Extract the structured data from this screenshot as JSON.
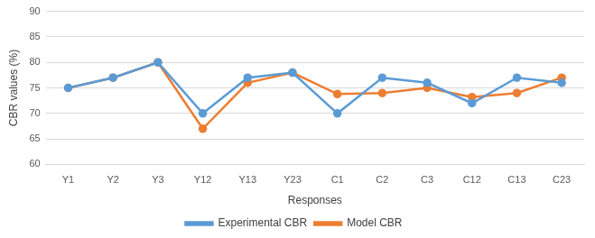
{
  "chart_data": {
    "type": "line",
    "categories": [
      "Y1",
      "Y2",
      "Y3",
      "Y12",
      "Y13",
      "Y23",
      "C1",
      "C2",
      "C3",
      "C12",
      "C13",
      "C23"
    ],
    "x_label": "Responses",
    "y_label": "CBR values (%)",
    "series": [
      {
        "name": "Experimental CBR",
        "color": "#5b9bd5",
        "marker": "circle",
        "values": [
          75,
          77,
          80,
          70,
          77,
          78,
          70,
          77,
          76,
          72,
          77,
          76
        ]
      },
      {
        "name": "Model CBR",
        "color": "#ed7d31",
        "marker": "circle",
        "values": [
          75,
          77,
          80,
          67,
          76,
          78,
          73.8,
          74,
          75,
          73.2,
          74,
          77
        ]
      }
    ],
    "ylim": [
      60,
      90
    ],
    "yticks": [
      60,
      65,
      70,
      75,
      80,
      85,
      90
    ],
    "grid": true,
    "legend": "bottom"
  }
}
